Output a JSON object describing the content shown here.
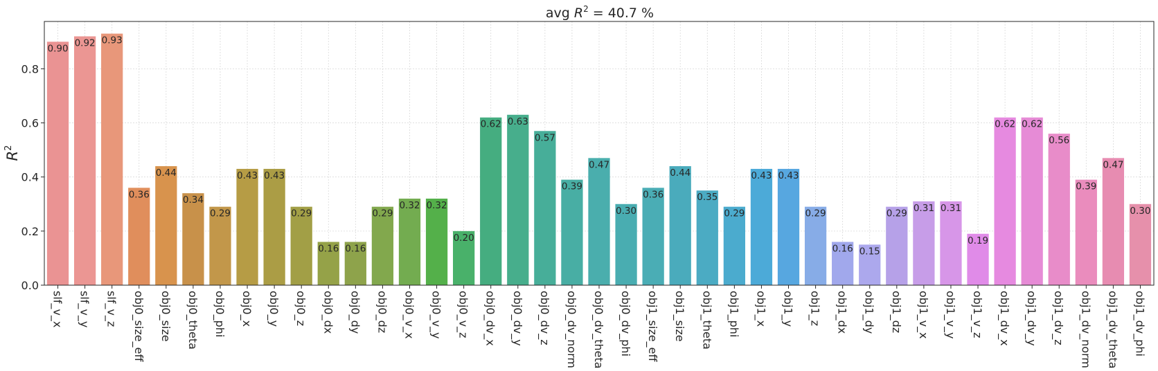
{
  "chart_data": {
    "type": "bar",
    "title_prefix": "avg ",
    "title_var": "R",
    "title_sup": "2",
    "title_suffix": " = 40.7 %",
    "ylabel_var": "R",
    "ylabel_sup": "2",
    "xlabel": "",
    "ylim": [
      0,
      0.975
    ],
    "yticks": [
      0.0,
      0.2,
      0.4,
      0.6,
      0.8
    ],
    "ytick_labels": [
      "0.0",
      "0.2",
      "0.4",
      "0.6",
      "0.8"
    ],
    "grid": true,
    "categories": [
      "slf_v_x",
      "slf_v_y",
      "slf_v_z",
      "obj0_size_eff",
      "obj0_size",
      "obj0_theta",
      "obj0_phi",
      "obj0_x",
      "obj0_y",
      "obj0_z",
      "obj0_dx",
      "obj0_dy",
      "obj0_dz",
      "obj0_v_x",
      "obj0_v_y",
      "obj0_v_z",
      "obj0_dv_x",
      "obj0_dv_y",
      "obj0_dv_z",
      "obj0_dv_norm",
      "obj0_dv_theta",
      "obj0_dv_phi",
      "obj1_size_eff",
      "obj1_size",
      "obj1_theta",
      "obj1_phi",
      "obj1_x",
      "obj1_y",
      "obj1_z",
      "obj1_dx",
      "obj1_dy",
      "obj1_dz",
      "obj1_v_x",
      "obj1_v_y",
      "obj1_v_z",
      "obj1_dv_x",
      "obj1_dv_y",
      "obj1_dv_z",
      "obj1_dv_norm",
      "obj1_dv_theta",
      "obj1_dv_phi"
    ],
    "values": [
      0.9,
      0.92,
      0.93,
      0.36,
      0.44,
      0.34,
      0.29,
      0.43,
      0.43,
      0.29,
      0.16,
      0.16,
      0.29,
      0.32,
      0.32,
      0.2,
      0.62,
      0.63,
      0.57,
      0.39,
      0.47,
      0.3,
      0.36,
      0.44,
      0.35,
      0.29,
      0.43,
      0.43,
      0.29,
      0.16,
      0.15,
      0.29,
      0.31,
      0.31,
      0.19,
      0.62,
      0.62,
      0.56,
      0.39,
      0.47,
      0.3
    ],
    "value_labels": [
      "0.90",
      "0.92",
      "0.93",
      "0.36",
      "0.44",
      "0.34",
      "0.29",
      "0.43",
      "0.43",
      "0.29",
      "0.16",
      "0.16",
      "0.29",
      "0.32",
      "0.32",
      "0.20",
      "0.62",
      "0.63",
      "0.57",
      "0.39",
      "0.47",
      "0.30",
      "0.36",
      "0.44",
      "0.35",
      "0.29",
      "0.43",
      "0.43",
      "0.29",
      "0.16",
      "0.15",
      "0.29",
      "0.31",
      "0.31",
      "0.19",
      "0.62",
      "0.62",
      "0.56",
      "0.39",
      "0.47",
      "0.30"
    ],
    "colors": [
      "#ea9393",
      "#eb9693",
      "#e8977a",
      "#e08e5c",
      "#d8934d",
      "#c8914a",
      "#c2974a",
      "#b69c45",
      "#ab9d45",
      "#a29f46",
      "#95a248",
      "#8ea34b",
      "#82a84d",
      "#73ac50",
      "#54b04a",
      "#49b16a",
      "#45ad80",
      "#47ae8c",
      "#47ae99",
      "#48aea4",
      "#4aaead",
      "#49adb1",
      "#4aadb5",
      "#4aabbc",
      "#4babc3",
      "#4babce",
      "#4caad8",
      "#57a7e0",
      "#87ace7",
      "#a1a8ec",
      "#aca8ed",
      "#b6a1e8",
      "#c79de8",
      "#d796e8",
      "#e08be8",
      "#e68ae0",
      "#e68bd6",
      "#e88cc9",
      "#ea8cbd",
      "#e78cb1",
      "#e690ab"
    ]
  }
}
